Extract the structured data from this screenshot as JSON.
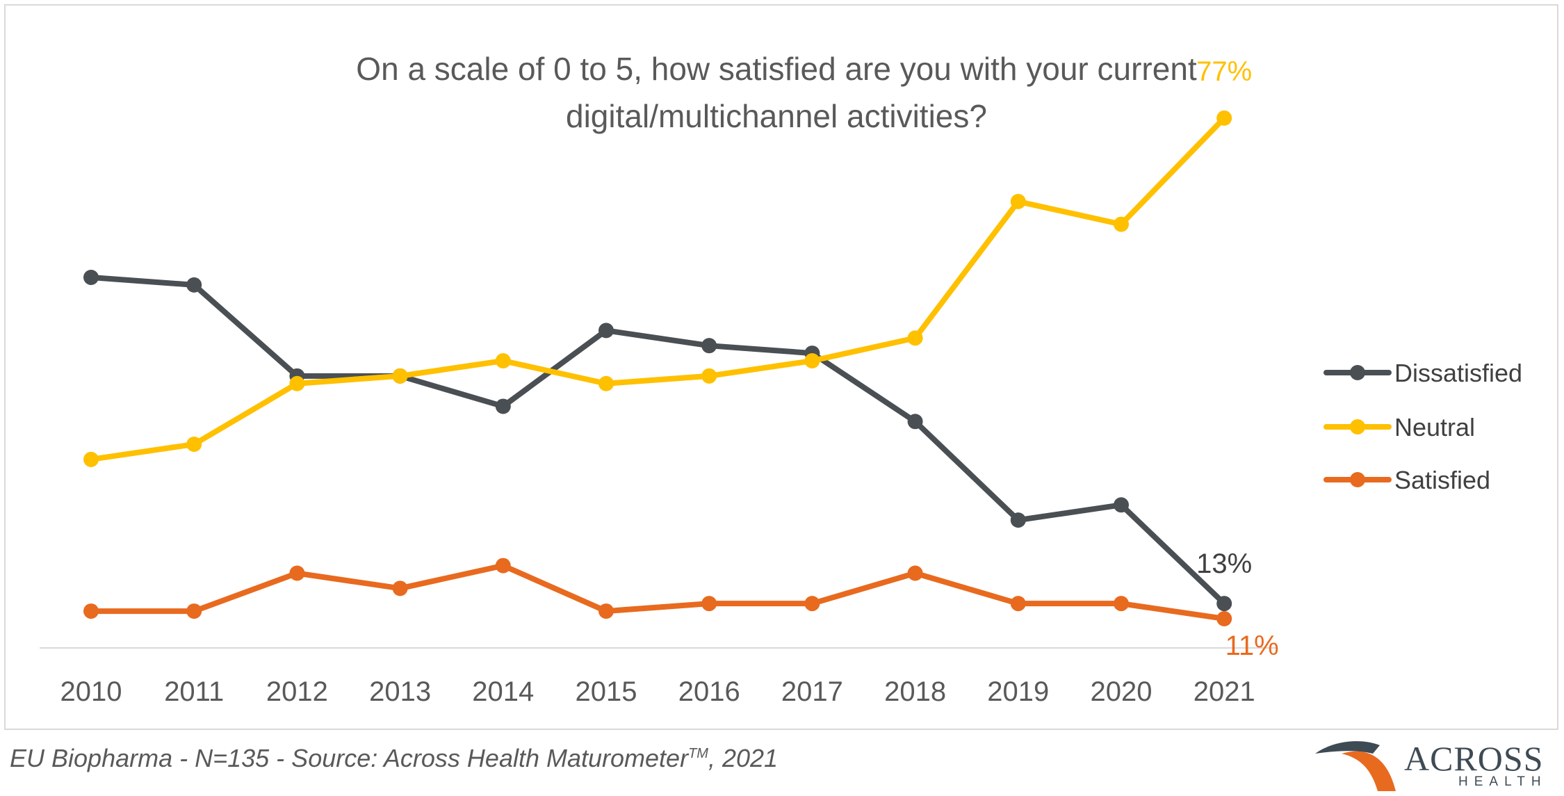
{
  "chart_data": {
    "type": "line",
    "title": "On a scale of 0 to 5, how satisfied are you with your current digital/multichannel activities?",
    "title_lines": [
      "On a scale of 0 to 5, how satisfied are you with your current",
      "digital/multichannel activities?"
    ],
    "xlabel": "",
    "ylabel": "",
    "categories": [
      "2010",
      "2011",
      "2012",
      "2013",
      "2014",
      "2015",
      "2016",
      "2017",
      "2018",
      "2019",
      "2020",
      "2021"
    ],
    "ylim": [
      0,
      90
    ],
    "grid": false,
    "legend_position": "right",
    "series": [
      {
        "name": "Dissatisfied",
        "color": "#4a4f54",
        "values": [
          56,
          55,
          43,
          43,
          39,
          49,
          47,
          46,
          37,
          24,
          26,
          13
        ]
      },
      {
        "name": "Neutral",
        "color": "#ffc000",
        "values": [
          32,
          34,
          42,
          43,
          45,
          42,
          43,
          45,
          48,
          66,
          63,
          77
        ]
      },
      {
        "name": "Satisfied",
        "color": "#e86a1f",
        "values": [
          12,
          12,
          17,
          15,
          18,
          12,
          13,
          13,
          17,
          13,
          13,
          11
        ]
      }
    ],
    "annotations": [
      {
        "text": "77%",
        "series": "Neutral",
        "color": "#ffc000"
      },
      {
        "text": "13%",
        "series": "Dissatisfied",
        "color": "#404040"
      },
      {
        "text": "11%",
        "series": "Satisfied",
        "color": "#e86a1f"
      }
    ]
  },
  "footer": {
    "source_main": "EU Biopharma - N=135  -  Source: Across Health Maturometer",
    "source_tm": "TM",
    "source_year": ", 2021"
  },
  "brand": {
    "name": "ACROSS",
    "sub": "HEALTH",
    "colors": {
      "orange": "#e86a1f",
      "gray": "#3f4b54"
    }
  }
}
